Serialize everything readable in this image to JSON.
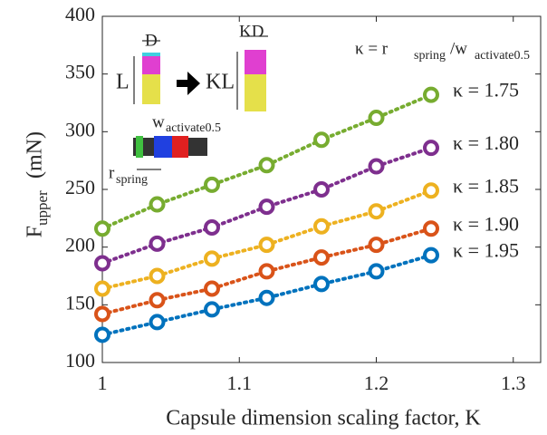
{
  "chart_data": {
    "type": "line",
    "xlabel": "Capsule dimension scaling factor, K",
    "ylabel": {
      "main": "F",
      "sub": "upper",
      "unit": "(mN)"
    },
    "x": [
      1,
      1.04,
      1.08,
      1.12,
      1.16,
      1.2,
      1.24
    ],
    "series": [
      {
        "name": "κ = 1.75",
        "color": "#77ac30",
        "values": [
          216,
          237,
          254,
          271,
          293,
          312,
          332
        ]
      },
      {
        "name": "κ = 1.80",
        "color": "#7e2f8e",
        "values": [
          186,
          203,
          217,
          235,
          250,
          270,
          286
        ]
      },
      {
        "name": "κ = 1.85",
        "color": "#edb120",
        "values": [
          164,
          175,
          190,
          202,
          218,
          231,
          249
        ]
      },
      {
        "name": "κ = 1.90",
        "color": "#d95319",
        "values": [
          142,
          154,
          164,
          179,
          191,
          202,
          216
        ]
      },
      {
        "name": "κ = 1.95",
        "color": "#0072bd",
        "values": [
          124,
          135,
          146,
          156,
          168,
          179,
          193
        ]
      }
    ],
    "xlim": [
      1,
      1.32
    ],
    "xticks": [
      1,
      1.1,
      1.2,
      1.3
    ],
    "ylim": [
      100,
      400
    ],
    "yticks": [
      100,
      150,
      200,
      250,
      300,
      350,
      400
    ],
    "formula": {
      "lhs": "κ = r",
      "sub1": "spring",
      "mid": "/w",
      "sub2": "activate0.5"
    },
    "inset": {
      "d": "D",
      "l": "L",
      "kl": "KL",
      "kd": "KD",
      "w": "w",
      "w_sub": "activate0.5",
      "r": "r",
      "r_sub": "spring"
    }
  }
}
